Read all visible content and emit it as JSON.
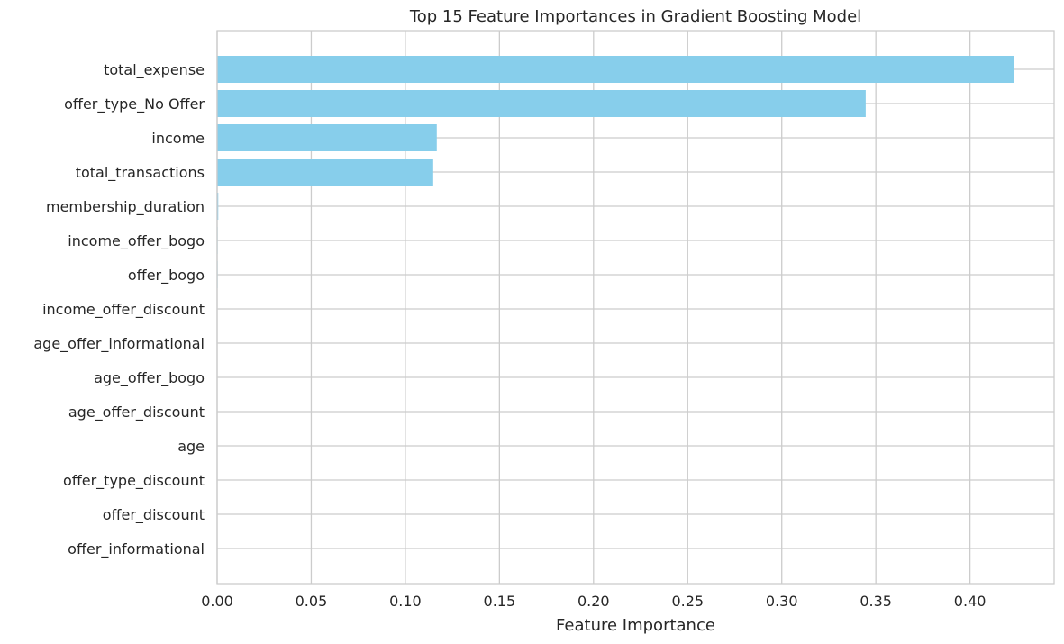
{
  "chart_data": {
    "type": "bar",
    "orientation": "horizontal",
    "title": "Top 15 Feature Importances in Gradient Boosting Model",
    "xlabel": "Feature Importance",
    "ylabel": "",
    "categories": [
      "total_expense",
      "offer_type_No Offer",
      "income",
      "total_transactions",
      "membership_duration",
      "income_offer_bogo",
      "offer_bogo",
      "income_offer_discount",
      "age_offer_informational",
      "age_offer_bogo",
      "age_offer_discount",
      "age",
      "offer_type_discount",
      "offer_discount",
      "offer_informational"
    ],
    "values": [
      0.4235,
      0.3446,
      0.1167,
      0.1148,
      0.0006,
      0.0003,
      0.0003,
      0.0002,
      0.0002,
      0.0001,
      0.0001,
      0.0001,
      0.0001,
      0.0001,
      0.0
    ],
    "xlim": [
      0,
      0.4447
    ],
    "xticks": [
      0.0,
      0.05,
      0.1,
      0.15,
      0.2,
      0.25,
      0.3,
      0.35,
      0.4
    ],
    "xtick_labels": [
      "0.00",
      "0.05",
      "0.10",
      "0.15",
      "0.20",
      "0.25",
      "0.30",
      "0.35",
      "0.40"
    ],
    "grid": true,
    "bar_color": "#87ceeb",
    "grid_color": "#cccccc"
  }
}
